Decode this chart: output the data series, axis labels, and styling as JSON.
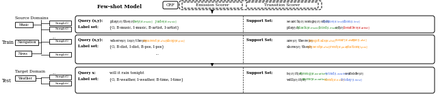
{
  "bg_color": "#ffffff",
  "title": "Few-shot Model",
  "crf": "CRF",
  "emission": "Emission Scorer",
  "transition": "Transition Scorer",
  "train": "Train",
  "test": "Test",
  "source_domains": "Source Domains",
  "target_domain": "Target Domain",
  "music": "Music",
  "navigation": "Navigation",
  "news": "News",
  "weather": "Weather",
  "query_xy": "Query (x,y):",
  "query_x": "Query x:",
  "label_set": "Label set:",
  "support_set": "Support Set:",
  "color_black": "#000000",
  "color_green": "#228B22",
  "color_orange": "#FF8C00",
  "color_blue": "#4169E1",
  "color_red": "#CC0000"
}
